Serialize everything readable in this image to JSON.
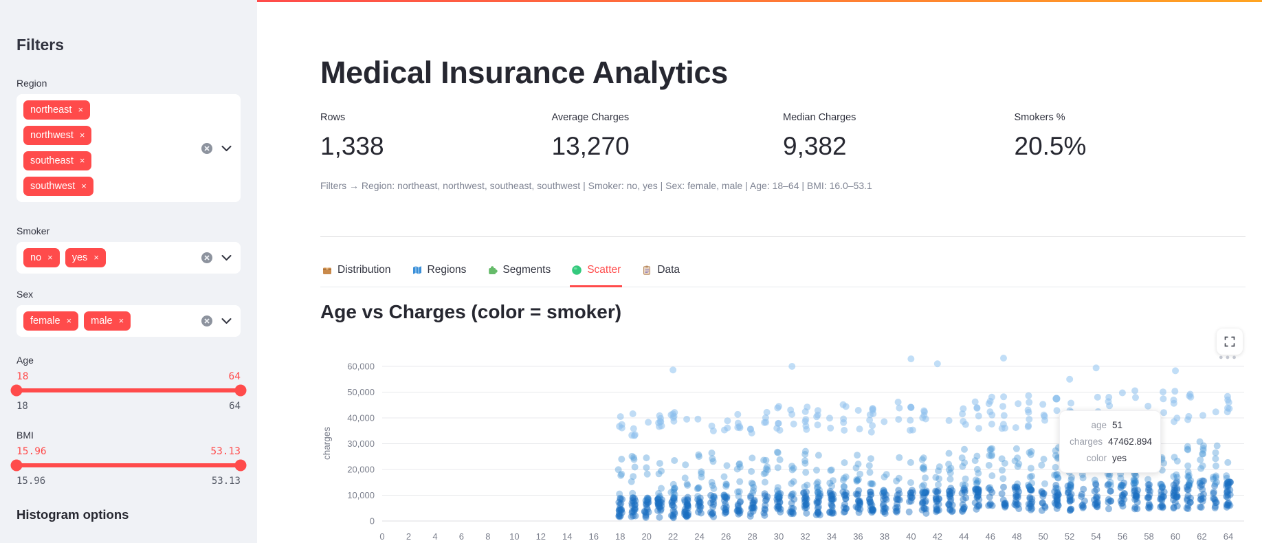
{
  "colors": {
    "primary": "#ff4b4b",
    "sidebar_bg": "#f0f2f6",
    "text_dark": "#31333f",
    "caption_gray": "#7f8493",
    "grid": "#e8e9ec",
    "tick_gray": "#7b7f8c",
    "decoration_gradient": [
      "#ff4b4b",
      "#ffa421"
    ]
  },
  "sidebar": {
    "title": "Filters",
    "region": {
      "label": "Region",
      "tags": [
        "northeast",
        "northwest",
        "southeast",
        "southwest"
      ]
    },
    "smoker": {
      "label": "Smoker",
      "tags": [
        "no",
        "yes"
      ]
    },
    "sex": {
      "label": "Sex",
      "tags": [
        "female",
        "male"
      ]
    },
    "age_slider": {
      "label": "Age",
      "value_min": "18",
      "value_max": "64",
      "min": "18",
      "max": "64"
    },
    "bmi_slider": {
      "label": "BMI",
      "value_min": "15.96",
      "value_max": "53.13",
      "min": "15.96",
      "max": "53.13"
    },
    "histogram_heading": "Histogram options"
  },
  "header": {
    "title": "Medical Insurance Analytics"
  },
  "metrics": [
    {
      "label": "Rows",
      "value": "1,338"
    },
    {
      "label": "Average Charges",
      "value": "13,270"
    },
    {
      "label": "Median Charges",
      "value": "9,382"
    },
    {
      "label": "Smokers %",
      "value": "20.5%"
    }
  ],
  "filters_caption": "Filters → Region: northeast, northwest, southeast, southwest | Smoker: no, yes | Sex: female, male | Age: 18–64 | BMI: 16.0–53.1",
  "tabs": [
    {
      "label": "Distribution",
      "icon": "package-icon",
      "active": false
    },
    {
      "label": "Regions",
      "icon": "map-icon",
      "active": false
    },
    {
      "label": "Segments",
      "icon": "puzzle-icon",
      "active": false
    },
    {
      "label": "Scatter",
      "icon": "green-circle-icon",
      "active": true
    },
    {
      "label": "Data",
      "icon": "clipboard-icon",
      "active": false
    }
  ],
  "section_title": "Age vs Charges (color = smoker)",
  "chart_data": {
    "type": "scatter",
    "title": "Age vs Charges (color = smoker)",
    "xlabel": "",
    "ylabel": "charges",
    "color_field": "smoker",
    "xlim": [
      0,
      64
    ],
    "ylim": [
      0,
      64000
    ],
    "grid": true,
    "legend": "none",
    "x_ticks": [
      0,
      2,
      4,
      6,
      8,
      10,
      12,
      14,
      16,
      18,
      20,
      22,
      24,
      26,
      28,
      30,
      32,
      34,
      36,
      38,
      40,
      42,
      44,
      46,
      48,
      50,
      52,
      54,
      56,
      58,
      60,
      62,
      64
    ],
    "y_ticks": [
      {
        "value": 0,
        "label": "0"
      },
      {
        "value": 10000,
        "label": "10,000"
      },
      {
        "value": 20000,
        "label": "20,000"
      },
      {
        "value": 30000,
        "label": "30,000"
      },
      {
        "value": 40000,
        "label": "40,000"
      },
      {
        "value": 50000,
        "label": "50,000"
      },
      {
        "value": 60000,
        "label": "60,000"
      }
    ],
    "age_range_of_data": [
      18,
      64
    ],
    "bands": [
      {
        "name": "non-smoker baseline (dense, rises with age)",
        "color": "#1a6fc0",
        "opacity": 0.45,
        "count": 740,
        "y_range_at_18": [
          1100,
          9200
        ],
        "y_range_at_64": [
          5200,
          15800
        ]
      },
      {
        "name": "baseline upper fringe",
        "color": "#2b83cf",
        "opacity": 0.35,
        "count": 150,
        "y_range_at_18": [
          8500,
          14000
        ],
        "y_range_at_64": [
          14000,
          20000
        ]
      },
      {
        "name": "mid band (smoker low / high bmi)",
        "color": "#5aa2dc",
        "opacity": 0.45,
        "count": 160,
        "y_range_at_18": [
          14500,
          25500
        ],
        "y_range_at_64": [
          20000,
          31000
        ]
      },
      {
        "name": "smoker high band",
        "color": "#8cc0ec",
        "opacity": 0.55,
        "count": 165,
        "y_range_at_18": [
          32500,
          41500
        ],
        "y_range_at_64": [
          37500,
          52500
        ]
      }
    ],
    "outlier_points": [
      {
        "age": 22,
        "charges": 58600
      },
      {
        "age": 31,
        "charges": 60000
      },
      {
        "age": 40,
        "charges": 62900
      },
      {
        "age": 42,
        "charges": 61000
      },
      {
        "age": 47,
        "charges": 63200
      },
      {
        "age": 54,
        "charges": 59400
      },
      {
        "age": 60,
        "charges": 58300
      },
      {
        "age": 52,
        "charges": 55000
      }
    ],
    "highlighted_point": {
      "age": 51,
      "charges": 47462.894,
      "color": "yes",
      "dot_color": "#8cc0ec"
    }
  },
  "tooltip": {
    "rows": [
      {
        "label": "age",
        "value": "51"
      },
      {
        "label": "charges",
        "value": "47462.894"
      },
      {
        "label": "color",
        "value": "yes"
      }
    ]
  }
}
